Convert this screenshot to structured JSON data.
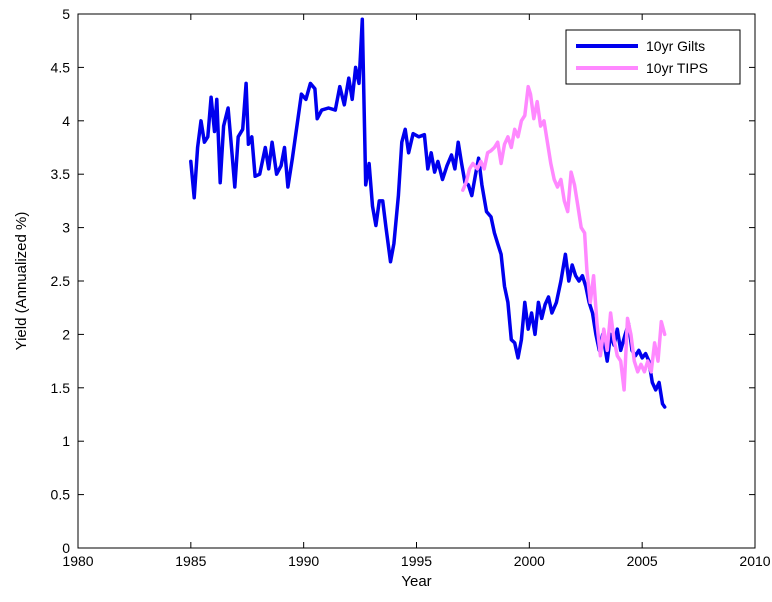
{
  "chart_data": {
    "type": "line",
    "title": "",
    "xlabel": "Year",
    "ylabel": "Yield (Annualized %)",
    "xlim": [
      1980,
      2010
    ],
    "ylim": [
      0,
      5
    ],
    "x_ticks": [
      "1980",
      "1985",
      "1990",
      "1995",
      "2000",
      "2005",
      "2010"
    ],
    "y_ticks": [
      "0",
      "0.5",
      "1",
      "1.5",
      "2",
      "2.5",
      "3",
      "3.5",
      "4",
      "4.5",
      "5"
    ],
    "grid": false,
    "legend_position": "top-right",
    "series": [
      {
        "name": "10yr Gilts",
        "color": "#0000ee",
        "points": [
          [
            1985.0,
            3.62
          ],
          [
            1985.15,
            3.28
          ],
          [
            1985.3,
            3.75
          ],
          [
            1985.45,
            4.0
          ],
          [
            1985.6,
            3.8
          ],
          [
            1985.75,
            3.85
          ],
          [
            1985.9,
            4.22
          ],
          [
            1986.05,
            3.9
          ],
          [
            1986.15,
            4.2
          ],
          [
            1986.3,
            3.42
          ],
          [
            1986.45,
            3.95
          ],
          [
            1986.65,
            4.12
          ],
          [
            1986.8,
            3.75
          ],
          [
            1986.95,
            3.38
          ],
          [
            1987.1,
            3.85
          ],
          [
            1987.3,
            3.92
          ],
          [
            1987.45,
            4.35
          ],
          [
            1987.55,
            3.78
          ],
          [
            1987.7,
            3.85
          ],
          [
            1987.85,
            3.48
          ],
          [
            1988.05,
            3.5
          ],
          [
            1988.3,
            3.75
          ],
          [
            1988.45,
            3.55
          ],
          [
            1988.6,
            3.8
          ],
          [
            1988.8,
            3.5
          ],
          [
            1989.0,
            3.58
          ],
          [
            1989.15,
            3.75
          ],
          [
            1989.3,
            3.38
          ],
          [
            1989.5,
            3.65
          ],
          [
            1989.7,
            3.95
          ],
          [
            1989.9,
            4.25
          ],
          [
            1990.1,
            4.2
          ],
          [
            1990.3,
            4.35
          ],
          [
            1990.5,
            4.3
          ],
          [
            1990.6,
            4.02
          ],
          [
            1990.8,
            4.1
          ],
          [
            1991.1,
            4.12
          ],
          [
            1991.4,
            4.1
          ],
          [
            1991.6,
            4.32
          ],
          [
            1991.8,
            4.15
          ],
          [
            1992.0,
            4.4
          ],
          [
            1992.15,
            4.2
          ],
          [
            1992.3,
            4.5
          ],
          [
            1992.45,
            4.35
          ],
          [
            1992.6,
            4.95
          ],
          [
            1992.75,
            3.4
          ],
          [
            1992.9,
            3.6
          ],
          [
            1993.05,
            3.2
          ],
          [
            1993.2,
            3.02
          ],
          [
            1993.35,
            3.25
          ],
          [
            1993.5,
            3.25
          ],
          [
            1993.65,
            3.0
          ],
          [
            1993.85,
            2.68
          ],
          [
            1994.0,
            2.85
          ],
          [
            1994.2,
            3.3
          ],
          [
            1994.35,
            3.8
          ],
          [
            1994.5,
            3.92
          ],
          [
            1994.65,
            3.7
          ],
          [
            1994.85,
            3.88
          ],
          [
            1995.1,
            3.85
          ],
          [
            1995.35,
            3.87
          ],
          [
            1995.5,
            3.55
          ],
          [
            1995.65,
            3.7
          ],
          [
            1995.8,
            3.52
          ],
          [
            1995.95,
            3.62
          ],
          [
            1996.15,
            3.45
          ],
          [
            1996.35,
            3.58
          ],
          [
            1996.55,
            3.68
          ],
          [
            1996.7,
            3.55
          ],
          [
            1996.85,
            3.8
          ],
          [
            1997.0,
            3.6
          ],
          [
            1997.15,
            3.42
          ],
          [
            1997.3,
            3.4
          ],
          [
            1997.45,
            3.3
          ],
          [
            1997.6,
            3.48
          ],
          [
            1997.75,
            3.65
          ],
          [
            1997.9,
            3.4
          ],
          [
            1998.1,
            3.15
          ],
          [
            1998.3,
            3.1
          ],
          [
            1998.45,
            2.95
          ],
          [
            1998.6,
            2.85
          ],
          [
            1998.75,
            2.75
          ],
          [
            1998.9,
            2.45
          ],
          [
            1999.05,
            2.3
          ],
          [
            1999.2,
            1.95
          ],
          [
            1999.35,
            1.92
          ],
          [
            1999.5,
            1.78
          ],
          [
            1999.65,
            1.95
          ],
          [
            1999.8,
            2.3
          ],
          [
            1999.95,
            2.05
          ],
          [
            2000.1,
            2.2
          ],
          [
            2000.25,
            2.0
          ],
          [
            2000.4,
            2.3
          ],
          [
            2000.55,
            2.15
          ],
          [
            2000.7,
            2.28
          ],
          [
            2000.85,
            2.35
          ],
          [
            2001.0,
            2.2
          ],
          [
            2001.2,
            2.3
          ],
          [
            2001.4,
            2.5
          ],
          [
            2001.6,
            2.75
          ],
          [
            2001.75,
            2.5
          ],
          [
            2001.9,
            2.65
          ],
          [
            2002.05,
            2.55
          ],
          [
            2002.2,
            2.5
          ],
          [
            2002.35,
            2.55
          ],
          [
            2002.5,
            2.45
          ],
          [
            2002.65,
            2.3
          ],
          [
            2002.8,
            2.2
          ],
          [
            2002.95,
            2.0
          ],
          [
            2003.1,
            1.85
          ],
          [
            2003.25,
            2.0
          ],
          [
            2003.45,
            1.75
          ],
          [
            2003.6,
            2.0
          ],
          [
            2003.75,
            1.9
          ],
          [
            2003.9,
            2.05
          ],
          [
            2004.05,
            1.85
          ],
          [
            2004.25,
            2.0
          ],
          [
            2004.4,
            2.1
          ],
          [
            2004.55,
            1.85
          ],
          [
            2004.7,
            1.8
          ],
          [
            2004.85,
            1.85
          ],
          [
            2005.0,
            1.78
          ],
          [
            2005.15,
            1.82
          ],
          [
            2005.3,
            1.75
          ],
          [
            2005.45,
            1.55
          ],
          [
            2005.6,
            1.48
          ],
          [
            2005.75,
            1.55
          ],
          [
            2005.9,
            1.35
          ],
          [
            2006.0,
            1.32
          ]
        ]
      },
      {
        "name": "10yr TIPS",
        "color": "#ff88ff",
        "points": [
          [
            1997.05,
            3.35
          ],
          [
            1997.2,
            3.42
          ],
          [
            1997.35,
            3.55
          ],
          [
            1997.5,
            3.6
          ],
          [
            1997.7,
            3.55
          ],
          [
            1997.85,
            3.62
          ],
          [
            1998.0,
            3.55
          ],
          [
            1998.15,
            3.7
          ],
          [
            1998.3,
            3.72
          ],
          [
            1998.45,
            3.75
          ],
          [
            1998.6,
            3.8
          ],
          [
            1998.75,
            3.6
          ],
          [
            1998.9,
            3.78
          ],
          [
            1999.05,
            3.85
          ],
          [
            1999.2,
            3.75
          ],
          [
            1999.35,
            3.92
          ],
          [
            1999.5,
            3.85
          ],
          [
            1999.65,
            4.0
          ],
          [
            1999.8,
            4.05
          ],
          [
            1999.95,
            4.32
          ],
          [
            2000.05,
            4.25
          ],
          [
            2000.2,
            4.02
          ],
          [
            2000.35,
            4.18
          ],
          [
            2000.5,
            3.95
          ],
          [
            2000.65,
            4.0
          ],
          [
            2000.8,
            3.8
          ],
          [
            2000.95,
            3.6
          ],
          [
            2001.1,
            3.45
          ],
          [
            2001.25,
            3.38
          ],
          [
            2001.4,
            3.45
          ],
          [
            2001.55,
            3.25
          ],
          [
            2001.7,
            3.15
          ],
          [
            2001.85,
            3.52
          ],
          [
            2002.0,
            3.4
          ],
          [
            2002.15,
            3.2
          ],
          [
            2002.3,
            3.0
          ],
          [
            2002.45,
            2.95
          ],
          [
            2002.55,
            2.6
          ],
          [
            2002.7,
            2.3
          ],
          [
            2002.85,
            2.55
          ],
          [
            2003.0,
            2.1
          ],
          [
            2003.15,
            1.8
          ],
          [
            2003.3,
            2.05
          ],
          [
            2003.45,
            1.85
          ],
          [
            2003.6,
            2.2
          ],
          [
            2003.75,
            1.95
          ],
          [
            2003.9,
            1.8
          ],
          [
            2004.05,
            1.75
          ],
          [
            2004.2,
            1.48
          ],
          [
            2004.35,
            2.15
          ],
          [
            2004.5,
            2.0
          ],
          [
            2004.65,
            1.75
          ],
          [
            2004.8,
            1.65
          ],
          [
            2004.95,
            1.72
          ],
          [
            2005.1,
            1.65
          ],
          [
            2005.25,
            1.75
          ],
          [
            2005.4,
            1.65
          ],
          [
            2005.55,
            1.92
          ],
          [
            2005.7,
            1.75
          ],
          [
            2005.85,
            2.12
          ],
          [
            2006.0,
            2.0
          ]
        ]
      }
    ]
  }
}
